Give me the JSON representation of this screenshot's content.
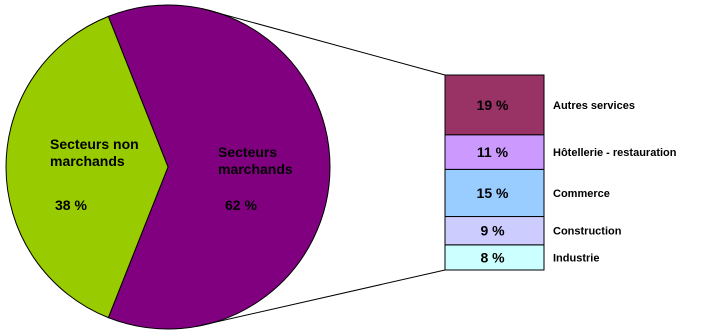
{
  "chart_data": {
    "type": "pie",
    "pie": {
      "slices": [
        {
          "label_lines": [
            "Secteurs non",
            "marchands"
          ],
          "value_label": "38 %",
          "value": 38,
          "color": "#99cc00"
        },
        {
          "label_lines": [
            "Secteurs",
            "marchands"
          ],
          "value_label": "62 %",
          "value": 62,
          "color": "#800080"
        }
      ]
    },
    "breakdown": {
      "of_slice": "Secteurs marchands",
      "segments": [
        {
          "label": "Industrie",
          "value_label": "8 %",
          "value": 8,
          "color": "#ccffff"
        },
        {
          "label": "Construction",
          "value_label": "9 %",
          "value": 9,
          "color": "#ccccff"
        },
        {
          "label": "Commerce",
          "value_label": "15 %",
          "value": 15,
          "color": "#99ccff"
        },
        {
          "label": "Hôtellerie - restauration",
          "value_label": "11 %",
          "value": 11,
          "color": "#cc99ff"
        },
        {
          "label": "Autres services",
          "value_label": "19 %",
          "value": 19,
          "color": "#993366"
        }
      ]
    }
  }
}
